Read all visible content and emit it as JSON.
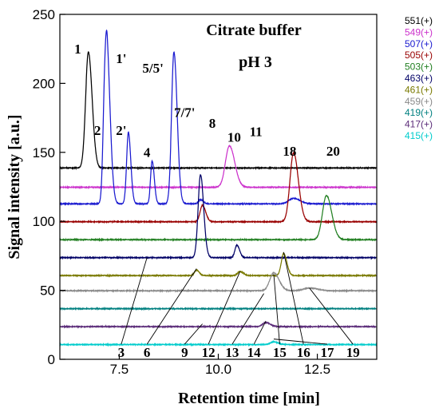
{
  "chart_data": {
    "type": "line",
    "title": "Citrate buffer",
    "subtitle": "pH 3",
    "xlabel": "Retention time  [min]",
    "ylabel": "Signal intensity  [a.u.]",
    "xlim": [
      6.0,
      14.0
    ],
    "ylim": [
      0,
      250
    ],
    "xticks": [
      7.5,
      10.0,
      12.5
    ],
    "xtick_labels": [
      "7.5",
      "10.0",
      "12.5"
    ],
    "yticks": [
      0,
      50,
      100,
      150,
      200,
      250
    ],
    "ytick_labels": [
      "0",
      "50",
      "100",
      "150",
      "200",
      "250"
    ],
    "grid": false,
    "legend_position": "right",
    "series": [
      {
        "name": "551(+)",
        "color": "#000000",
        "baseline": 141,
        "peaks": [
          [
            6.72,
            84,
            0.07
          ]
        ]
      },
      {
        "name": "549(+)",
        "color": "#cc33cc",
        "baseline": 127,
        "peaks": [
          [
            10.28,
            30,
            0.1
          ]
        ]
      },
      {
        "name": "507(+)",
        "color": "#1a1ad0",
        "baseline": 115,
        "peaks": [
          [
            7.13,
            54,
            0.045
          ],
          [
            7.2,
            92,
            0.06
          ],
          [
            7.73,
            52,
            0.045
          ],
          [
            8.33,
            31,
            0.04
          ],
          [
            8.88,
            110,
            0.06
          ],
          [
            9.55,
            3,
            0.05
          ],
          [
            11.9,
            4,
            0.12
          ]
        ]
      },
      {
        "name": "505(+)",
        "color": "#990000",
        "baseline": 102,
        "peaks": [
          [
            9.6,
            12,
            0.06
          ],
          [
            11.9,
            50,
            0.09
          ]
        ]
      },
      {
        "name": "503(+)",
        "color": "#238023",
        "baseline": 89,
        "peaks": [
          [
            12.73,
            32,
            0.1
          ]
        ]
      },
      {
        "name": "463(+)",
        "color": "#000066",
        "baseline": 76,
        "peaks": [
          [
            9.55,
            60,
            0.06
          ],
          [
            10.47,
            9,
            0.05
          ]
        ]
      },
      {
        "name": "461(+)",
        "color": "#7a7a00",
        "baseline": 63,
        "peaks": [
          [
            9.45,
            4,
            0.05
          ],
          [
            10.55,
            3,
            0.06
          ],
          [
            11.65,
            16,
            0.06
          ]
        ]
      },
      {
        "name": "459(+)",
        "color": "#8a8a8a",
        "baseline": 52,
        "peaks": [
          [
            11.4,
            13,
            0.1
          ],
          [
            12.3,
            2,
            0.15
          ]
        ]
      },
      {
        "name": "419(+)",
        "color": "#008080",
        "baseline": 39,
        "peaks": []
      },
      {
        "name": "417(+)",
        "color": "#5c2d7a",
        "baseline": 26,
        "peaks": [
          [
            11.2,
            3,
            0.08
          ]
        ]
      },
      {
        "name": "415(+)",
        "color": "#00cccc",
        "baseline": 13,
        "peaks": [
          [
            11.4,
            2,
            0.08
          ]
        ]
      }
    ],
    "annotations": [
      {
        "text": "1",
        "x": 6.45,
        "y": 224,
        "target": null
      },
      {
        "text": "1'",
        "x": 7.55,
        "y": 217,
        "target": null
      },
      {
        "text": "5/5'",
        "x": 8.35,
        "y": 210,
        "target": null
      },
      {
        "text": "2",
        "x": 6.95,
        "y": 165,
        "target": null
      },
      {
        "text": "2'",
        "x": 7.55,
        "y": 165,
        "target": null
      },
      {
        "text": "4",
        "x": 8.2,
        "y": 149,
        "target": null
      },
      {
        "text": "7/7'",
        "x": 9.15,
        "y": 178,
        "target": null
      },
      {
        "text": "8",
        "x": 9.85,
        "y": 170,
        "target": null
      },
      {
        "text": "10",
        "x": 10.4,
        "y": 160,
        "target": null
      },
      {
        "text": "11",
        "x": 10.95,
        "y": 164,
        "target": null
      },
      {
        "text": "18",
        "x": 11.8,
        "y": 150,
        "target": null
      },
      {
        "text": "20",
        "x": 12.9,
        "y": 150,
        "target": null
      },
      {
        "text": "3",
        "x": 7.55,
        "y": 4,
        "target": [
          8.2,
          76
        ]
      },
      {
        "text": "6",
        "x": 8.2,
        "y": 4,
        "target": [
          9.45,
          68
        ]
      },
      {
        "text": "9",
        "x": 9.15,
        "y": 4,
        "target": [
          9.6,
          28
        ]
      },
      {
        "text": "12",
        "x": 9.75,
        "y": 4,
        "target": [
          10.55,
          66
        ]
      },
      {
        "text": "13",
        "x": 10.35,
        "y": 4,
        "target": [
          11.15,
          50
        ]
      },
      {
        "text": "14",
        "x": 10.9,
        "y": 4,
        "target": [
          11.2,
          30
        ]
      },
      {
        "text": "15",
        "x": 11.55,
        "y": 4,
        "target": [
          11.4,
          64
        ]
      },
      {
        "text": "16",
        "x": 12.15,
        "y": 4,
        "target": [
          11.65,
          80
        ]
      },
      {
        "text": "17",
        "x": 12.75,
        "y": 4,
        "target": [
          11.4,
          17
        ]
      },
      {
        "text": "19",
        "x": 13.4,
        "y": 4,
        "target": [
          12.3,
          54
        ]
      }
    ]
  }
}
